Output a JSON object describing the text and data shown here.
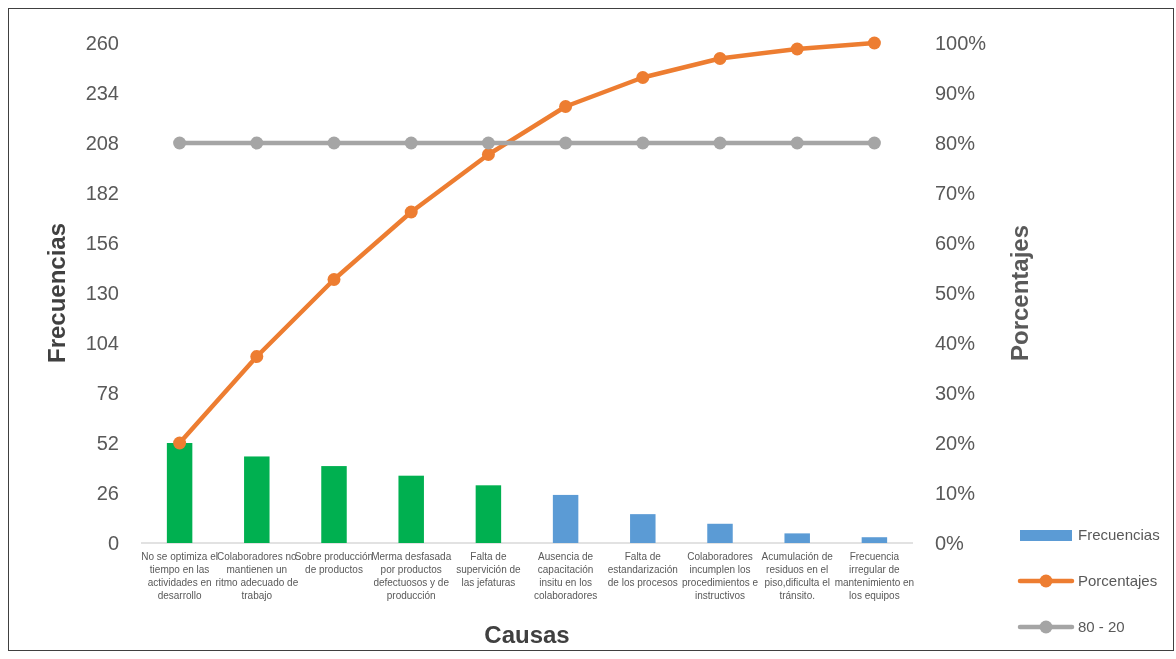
{
  "chart_data": {
    "type": "bar",
    "xlabel": "Causas",
    "ylabel": "Frecuencias",
    "y2label": "Porcentajes",
    "categories": [
      "No se optimiza el tiempo en las actividades en desarrollo",
      "Colaboradores no mantienen un ritmo adecuado de trabajo",
      "Sobre producción de productos",
      "Merma desfasada por productos defectuosos y de producción",
      "Falta de supervición de las jefaturas",
      "Ausencia de capacitación insitu en los colaboradores",
      "Falta de estandarización de los procesos",
      "Colaboradores incumplen los procedimientos e instructivos",
      "Acumulación de residuos en el piso,dificulta el tránsito.",
      "Frecuencia irregular de mantenimiento en los equipos"
    ],
    "series": [
      {
        "name": "Frecuencias",
        "color": "#5b9bd5",
        "colors": [
          "#00b050",
          "#00b050",
          "#00b050",
          "#00b050",
          "#00b050",
          "#5b9bd5",
          "#5b9bd5",
          "#5b9bd5",
          "#5b9bd5",
          "#5b9bd5"
        ],
        "values": [
          52,
          45,
          40,
          35,
          30,
          25,
          15,
          10,
          5,
          3
        ]
      },
      {
        "name": "Porcentajes",
        "type": "line",
        "axis": "y2",
        "color": "#ed7d31",
        "values": [
          20,
          37.3,
          52.7,
          66.2,
          77.7,
          87.3,
          93.1,
          96.9,
          98.8,
          100
        ]
      },
      {
        "name": "80 - 20",
        "type": "line",
        "axis": "y2",
        "color": "#a5a5a5",
        "values": [
          80,
          80,
          80,
          80,
          80,
          80,
          80,
          80,
          80,
          80
        ]
      }
    ],
    "ylim": [
      0,
      260
    ],
    "yticks": [
      0,
      26,
      52,
      78,
      104,
      130,
      156,
      182,
      208,
      234,
      260
    ],
    "y2lim": [
      0,
      100
    ],
    "y2ticks": [
      {
        "value": 0,
        "label": "0%"
      },
      {
        "value": 10,
        "label": "10%"
      },
      {
        "value": 20,
        "label": "20%"
      },
      {
        "value": 30,
        "label": "30%"
      },
      {
        "value": 40,
        "label": "40%"
      },
      {
        "value": 50,
        "label": "50%"
      },
      {
        "value": 60,
        "label": "60%"
      },
      {
        "value": 70,
        "label": "70%"
      },
      {
        "value": 80,
        "label": "80%"
      },
      {
        "value": 90,
        "label": "90%"
      },
      {
        "value": 100,
        "label": "100%"
      }
    ],
    "legend": "right",
    "marker": "circle",
    "grid": false
  }
}
